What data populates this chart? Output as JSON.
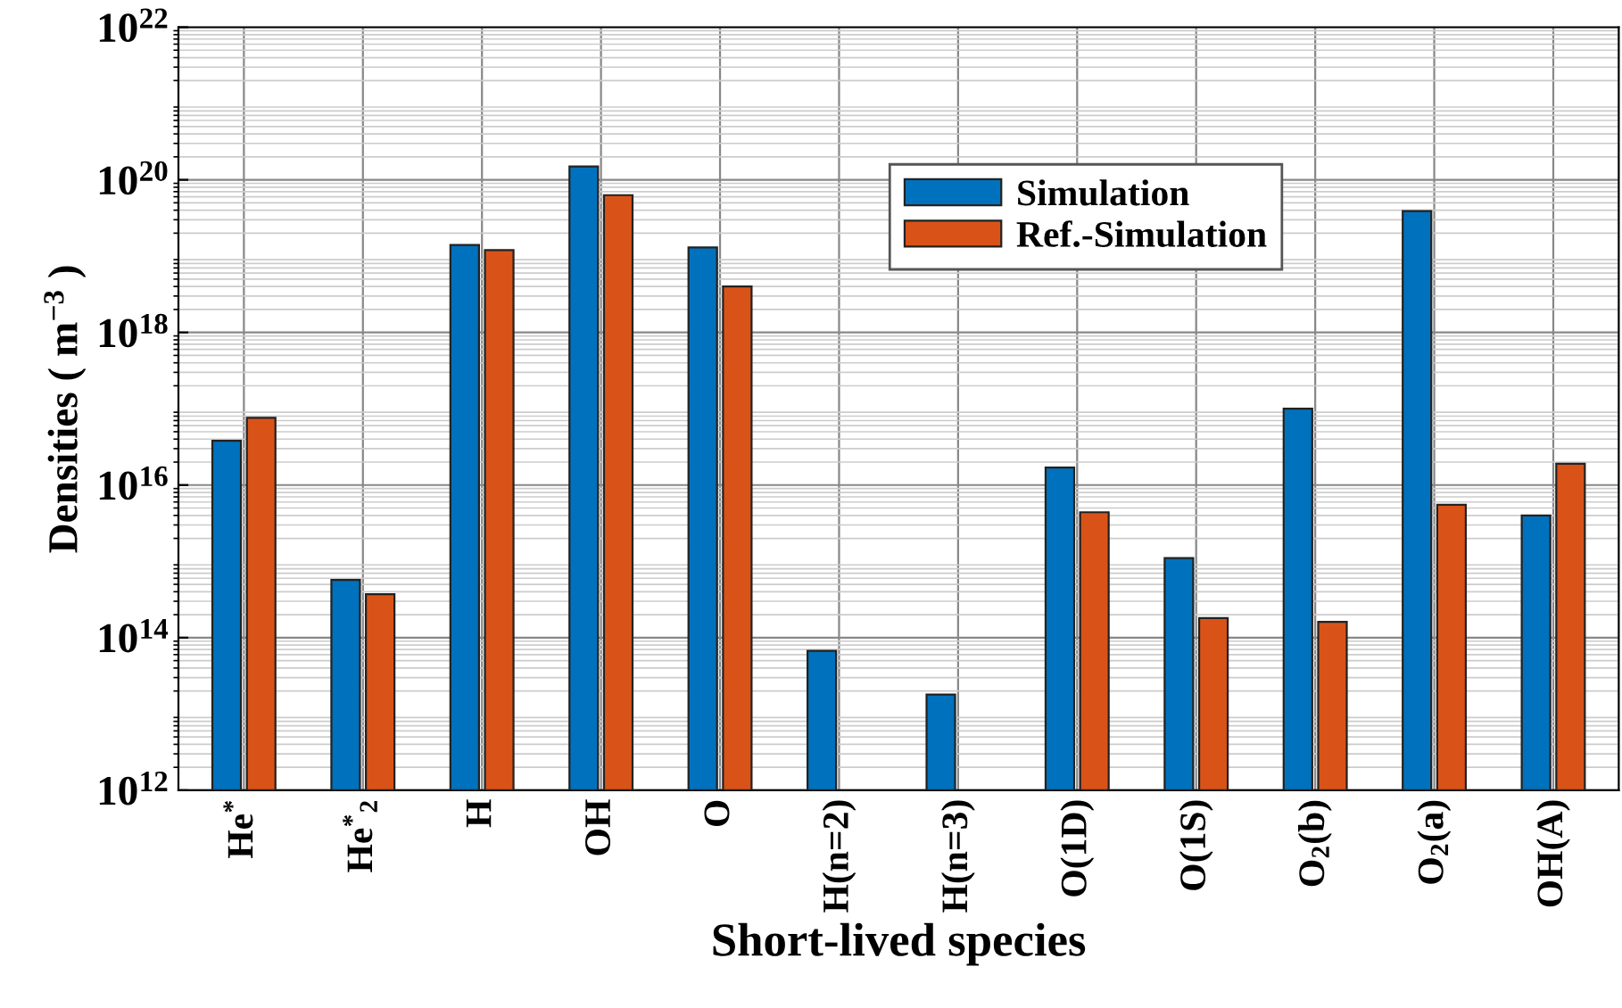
{
  "chart_data": {
    "type": "bar",
    "xlabel": "Short-lived species",
    "ylabel": "Densities ( m$^{−3}$ )",
    "categories": [
      "He$^{*}$",
      "He$^{*}$$_{2}$",
      "H",
      "OH",
      "O",
      "H(n=2)",
      "H(n=3)",
      "O(1D)",
      "O(1S)",
      "O$_{2}$(b)",
      "O$_{2}$(a)",
      "OH(A)"
    ],
    "series": [
      {
        "name": "Simulation",
        "color": "#0072bd",
        "values": [
          3.8e+16,
          570000000000000.0,
          1.4e+19,
          1.5e+20,
          1.3e+19,
          66000000000000.0,
          17000000000000.0,
          1.7e+16,
          1100000000000000.0,
          1e+17,
          3.9e+19,
          4000000000000000.0
        ]
      },
      {
        "name": "Ref.-Simulation",
        "color": "#d95319",
        "values": [
          7.6e+16,
          370000000000000.0,
          1.2e+19,
          6.3e+19,
          4e+18,
          null,
          null,
          4400000000000000.0,
          180000000000000.0,
          160000000000000.0,
          5500000000000000.0,
          1.9e+16
        ]
      }
    ],
    "log": "y",
    "ylim": [
      1000000000000.0,
      1e+22
    ],
    "yticks": [
      {
        "value": 1000000000000.0,
        "label": "10$^{12}$"
      },
      {
        "value": 100000000000000.0,
        "label": "10$^{14}$"
      },
      {
        "value": 1e+16,
        "label": "10$^{16}$"
      },
      {
        "value": 1e+18,
        "label": "10$^{18}$"
      },
      {
        "value": 1e+20,
        "label": "10$^{20}$"
      },
      {
        "value": 1e+22,
        "label": "10$^{22}$"
      }
    ],
    "grid": true,
    "legend": "top"
  }
}
